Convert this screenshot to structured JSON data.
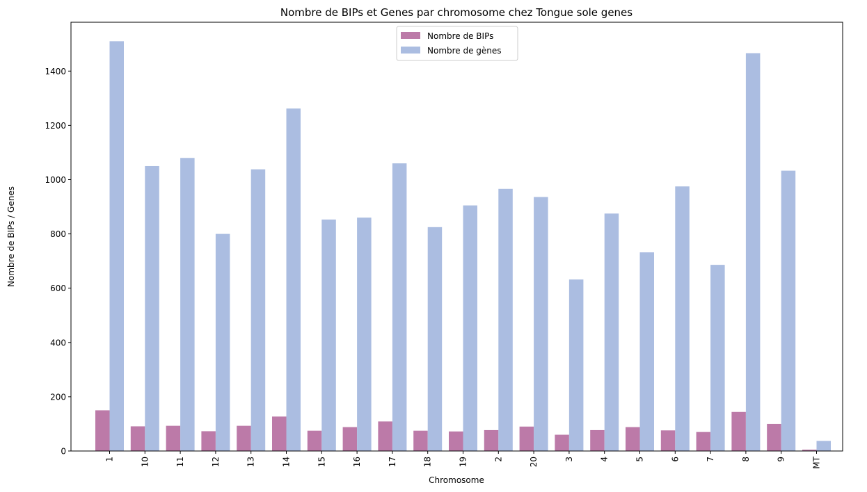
{
  "chart_data": {
    "type": "bar",
    "title": "Nombre de BIPs et Genes par chromosome chez Tongue sole genes",
    "xlabel": "Chromosome",
    "ylabel": "Nombre de BIPs / Genes",
    "categories": [
      "1",
      "10",
      "11",
      "12",
      "13",
      "14",
      "15",
      "16",
      "17",
      "18",
      "19",
      "2",
      "20",
      "3",
      "4",
      "5",
      "6",
      "7",
      "8",
      "9",
      "MT"
    ],
    "ylim": [
      0,
      1580
    ],
    "yticks": [
      0,
      200,
      400,
      600,
      800,
      1000,
      1200,
      1400
    ],
    "ytick_labels": [
      "0",
      "200",
      "400",
      "600",
      "800",
      "1000",
      "1200",
      "1400"
    ],
    "grid": false,
    "legend_position": "upper-center",
    "series": [
      {
        "name": "Nombre de BIPs",
        "color": "#bc7aa8",
        "values": [
          150,
          91,
          93,
          73,
          93,
          127,
          75,
          88,
          109,
          75,
          72,
          77,
          90,
          60,
          77,
          88,
          76,
          70,
          144,
          100,
          5
        ]
      },
      {
        "name": "Nombre de gènes",
        "color": "#abbde1",
        "values": [
          1510,
          1050,
          1080,
          800,
          1038,
          1262,
          853,
          860,
          1060,
          825,
          905,
          966,
          936,
          632,
          875,
          732,
          975,
          686,
          1466,
          1033,
          37
        ]
      }
    ]
  }
}
